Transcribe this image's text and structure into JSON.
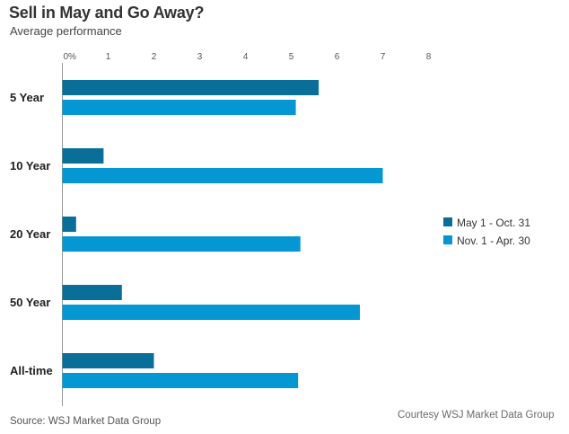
{
  "chart_data": {
    "type": "bar",
    "orientation": "horizontal",
    "title": "Sell in May and Go Away?",
    "subtitle": "Average performance",
    "categories": [
      "5 Year",
      "10 Year",
      "20 Year",
      "50 Year",
      "All-time"
    ],
    "series": [
      {
        "name": "May 1 - Oct. 31",
        "color": "#0a6f98",
        "values": [
          5.6,
          0.9,
          0.3,
          1.3,
          2.0
        ]
      },
      {
        "name": "Nov. 1 - Apr. 30",
        "color": "#0596d4",
        "values": [
          5.1,
          7.0,
          5.2,
          6.5,
          5.15
        ]
      }
    ],
    "xticks": [
      "0%",
      "1",
      "2",
      "3",
      "4",
      "5",
      "6",
      "7",
      "8"
    ],
    "xlim": [
      0,
      8
    ],
    "legend_position": "right",
    "source": "Source: WSJ Market Data Group",
    "courtesy": "Courtesy WSJ Market Data Group"
  }
}
